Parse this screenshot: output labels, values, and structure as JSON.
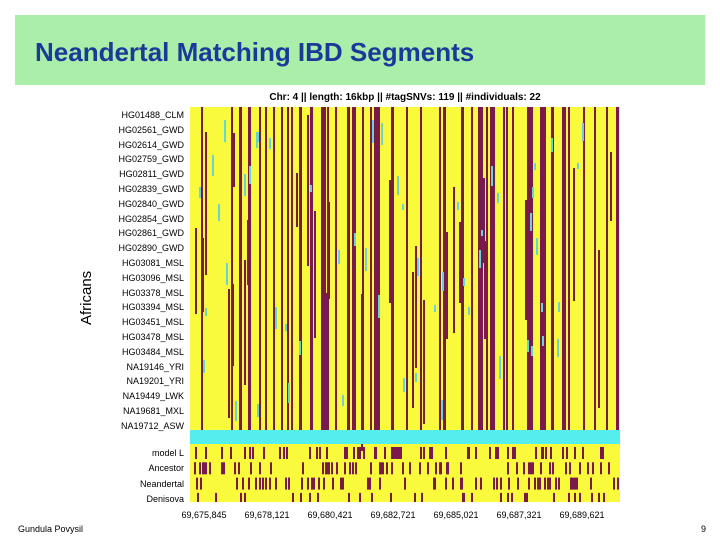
{
  "slide": {
    "title": "Neandertal Matching IBD Segments",
    "footer_author": "Gundula Povysil",
    "page_number": "9"
  },
  "plot": {
    "header": "Chr: 4  ||  length: 16kbp  ||  #tagSNVs: 119  ||  #individuals: 22",
    "group_label": "Africans",
    "colors": {
      "background": "#fafa3c",
      "minor_allele": "#7a1a4a",
      "major_mark": "#6ad4d4",
      "separator": "#55eeee"
    },
    "individuals": [
      "HG01488_CLM",
      "HG02561_GWD",
      "HG02614_GWD",
      "HG02759_GWD",
      "HG02811_GWD",
      "HG02839_GWD",
      "HG02840_GWD",
      "HG02854_GWD",
      "HG02861_GWD",
      "HG02890_GWD",
      "HG03081_MSL",
      "HG03096_MSL",
      "HG03378_MSL",
      "HG03394_MSL",
      "HG03451_MSL",
      "HG03478_MSL",
      "HG03484_MSL",
      "NA19146_YRI",
      "NA19201_YRI",
      "NA19449_LWK",
      "NA19681_MXL",
      "NA19712_ASW"
    ],
    "reference_rows": [
      "model L",
      "Ancestor",
      "Neandertal",
      "Denisova"
    ],
    "x_ticks": [
      "69,675,845",
      "69,678,121",
      "69,680,421",
      "69,682,721",
      "69,685,021",
      "69,687,321",
      "69,689,621"
    ]
  }
}
